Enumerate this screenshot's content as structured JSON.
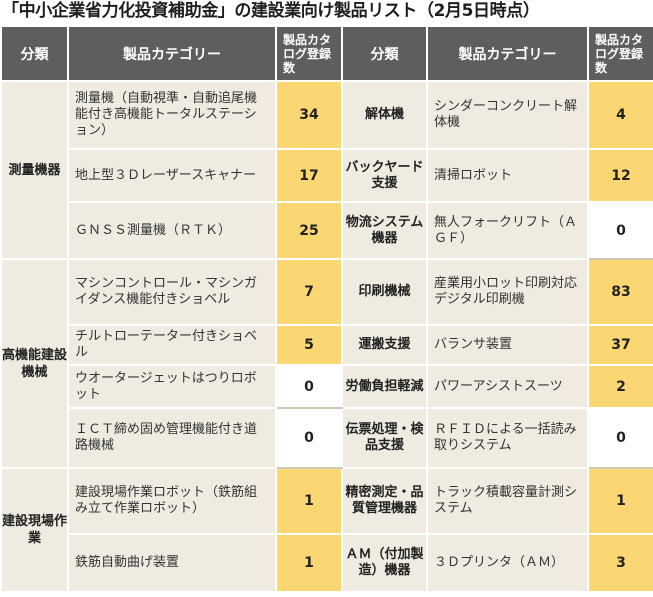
{
  "title": "「中小企業省力化投資補助金」の建設業向け製品リスト（2月5日時点）",
  "headers": {
    "category": "分類",
    "product": "製品カテゴリー",
    "count": "製品カタログ登録数"
  },
  "rows": [
    {
      "left": {
        "product": "測量機（自動視準・自動追尾機能付き高機能トータルステーション）",
        "count": "34"
      },
      "right": {
        "category": "解体機",
        "product": "シンダーコンクリート解体機",
        "count": "4"
      }
    },
    {
      "left": {
        "product": "地上型３Ｄレーザースキャナー",
        "count": "17"
      },
      "right": {
        "category": "バックヤード支援",
        "product": "清掃ロボット",
        "count": "12"
      }
    },
    {
      "left": {
        "product": "ＧＮＳＳ測量機（ＲＴＫ）",
        "count": "25"
      },
      "right": {
        "category": "物流システム機器",
        "product": "無人フォークリフト（ＡＧＦ）",
        "count": "0"
      }
    },
    {
      "left": {
        "product": "マシンコントロール・マシンガイダンス機能付きショベル",
        "count": "7"
      },
      "right": {
        "category": "印刷機械",
        "product": "産業用小ロット印刷対応デジタル印刷機",
        "count": "83"
      }
    },
    {
      "left": {
        "product": "チルトローテーター付きショベル",
        "count": "5"
      },
      "right": {
        "category": "運搬支援",
        "product": "バランサ装置",
        "count": "37"
      }
    },
    {
      "left": {
        "product": "ウオータージェットはつりロボット",
        "count": "0"
      },
      "right": {
        "category": "労働負担軽減",
        "product": "パワーアシストスーツ",
        "count": "2"
      }
    },
    {
      "left": {
        "product": "ＩＣＴ締め固め管理機能付き道路機械",
        "count": "0"
      },
      "right": {
        "category": "伝票処理・検品支援",
        "product": "ＲＦＩＤによる一括読み取りシステム",
        "count": "0"
      }
    },
    {
      "left": {
        "product": "建設現場作業ロボット（鉄筋組み立て作業ロボット）",
        "count": "1"
      },
      "right": {
        "category": "精密測定・品質管理機器",
        "product": "トラック積載容量計測システム",
        "count": "1"
      }
    },
    {
      "left": {
        "product": "鉄筋自動曲げ装置",
        "count": "1"
      },
      "right": {
        "category": "ＡＭ（付加製造）機器",
        "product": "３Ｄプリンタ（ＡＭ）",
        "count": "3"
      }
    }
  ],
  "left_groups": [
    {
      "category": "測量機器"
    },
    {
      "category": "高機能建設機械"
    },
    {
      "category": "建設現場作業"
    }
  ],
  "colors": {
    "header_bg": "#5e5e5e",
    "cell_bg": "#efebe0",
    "highlight": "#fbd774"
  }
}
